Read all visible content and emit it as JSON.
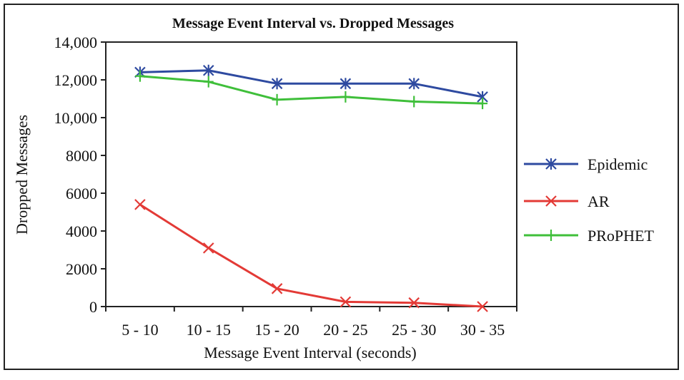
{
  "chart_data": {
    "type": "line",
    "title": "Message Event Interval vs. Dropped Messages",
    "xlabel": "Message Event Interval (seconds)",
    "ylabel": "Dropped Messages",
    "categories": [
      "5 - 10",
      "10 - 15",
      "15 - 20",
      "20 - 25",
      "25 - 30",
      "30 - 35"
    ],
    "ylim": [
      0,
      14000
    ],
    "yticks": [
      0,
      2000,
      4000,
      6000,
      8000,
      10000,
      12000,
      14000
    ],
    "ytick_labels": [
      "0",
      "2000",
      "4000",
      "6000",
      "8000",
      "10,000",
      "12,000",
      "14,000"
    ],
    "grid": false,
    "legend_position": "right",
    "series": [
      {
        "name": "Epidemic",
        "color": "#2e4aa0",
        "marker": "asterisk",
        "values": [
          12400,
          12500,
          11800,
          11800,
          11800,
          11100
        ]
      },
      {
        "name": "AR",
        "color": "#e33a36",
        "marker": "x",
        "values": [
          5400,
          3100,
          950,
          250,
          200,
          0
        ]
      },
      {
        "name": "PRoPHET",
        "color": "#3fbf3a",
        "marker": "plus",
        "values": [
          12200,
          11900,
          10950,
          11100,
          10850,
          10750
        ]
      }
    ]
  }
}
